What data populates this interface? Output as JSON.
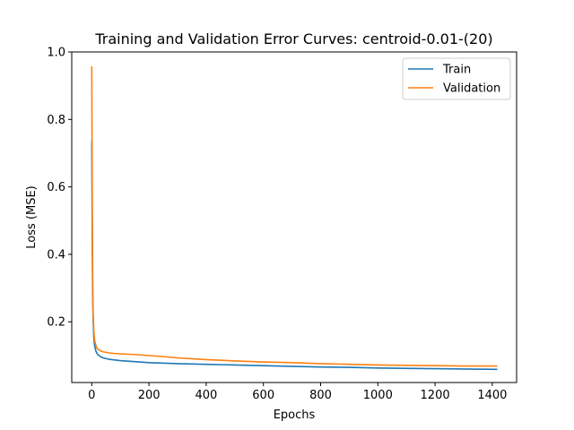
{
  "chart_data": {
    "type": "line",
    "title": "Training and Validation Error Curves: centroid-0.01-(20)",
    "xlabel": "Epochs",
    "ylabel": "Loss (MSE)",
    "xlim": [
      -70,
      1485
    ],
    "ylim": [
      0.02,
      1.0
    ],
    "xticks": [
      0,
      200,
      400,
      600,
      800,
      1000,
      1200,
      1400
    ],
    "yticks": [
      0.2,
      0.4,
      0.6,
      0.8,
      1.0
    ],
    "xtick_labels": [
      "0",
      "200",
      "400",
      "600",
      "800",
      "1000",
      "1200",
      "1400"
    ],
    "ytick_labels": [
      "0.2",
      "0.4",
      "0.6",
      "0.8",
      "1.0"
    ],
    "grid": false,
    "legend": "top-right",
    "series": [
      {
        "name": "Train",
        "color": "#1f77b4",
        "x": [
          0,
          1,
          2,
          3,
          4,
          5,
          7,
          10,
          15,
          20,
          30,
          40,
          60,
          80,
          100,
          150,
          200,
          300,
          400,
          500,
          600,
          700,
          800,
          900,
          1000,
          1100,
          1200,
          1300,
          1415
        ],
        "y": [
          0.735,
          0.55,
          0.4,
          0.3,
          0.24,
          0.2,
          0.155,
          0.128,
          0.112,
          0.104,
          0.097,
          0.093,
          0.089,
          0.087,
          0.085,
          0.082,
          0.079,
          0.076,
          0.074,
          0.072,
          0.07,
          0.068,
          0.066,
          0.065,
          0.063,
          0.062,
          0.061,
          0.06,
          0.059
        ]
      },
      {
        "name": "Validation",
        "color": "#ff7f0e",
        "x": [
          0,
          1,
          2,
          3,
          4,
          5,
          7,
          10,
          15,
          20,
          30,
          40,
          60,
          80,
          100,
          150,
          200,
          250,
          300,
          400,
          500,
          600,
          700,
          800,
          900,
          1000,
          1100,
          1200,
          1300,
          1415
        ],
        "y": [
          0.955,
          0.7,
          0.5,
          0.36,
          0.27,
          0.22,
          0.175,
          0.145,
          0.128,
          0.12,
          0.114,
          0.111,
          0.108,
          0.106,
          0.105,
          0.103,
          0.1,
          0.097,
          0.093,
          0.088,
          0.084,
          0.081,
          0.079,
          0.076,
          0.074,
          0.072,
          0.071,
          0.07,
          0.069,
          0.069
        ]
      }
    ]
  }
}
